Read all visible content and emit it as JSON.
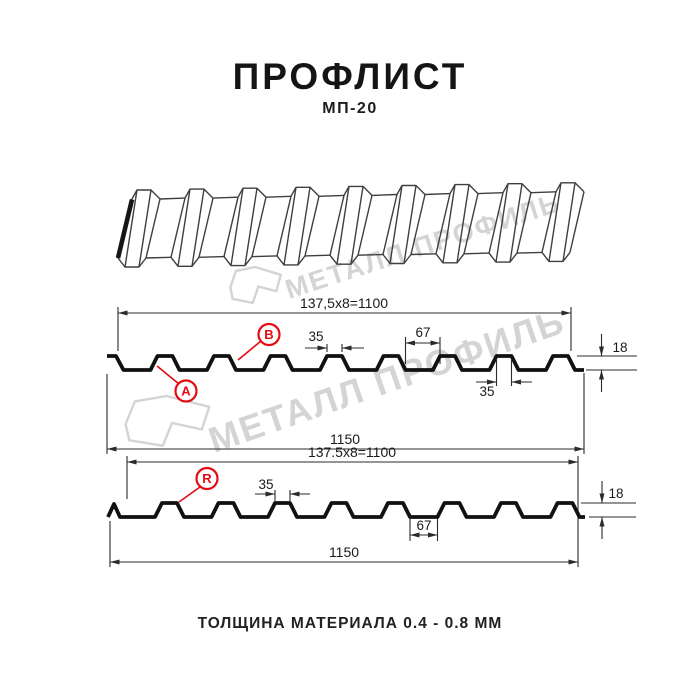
{
  "title": "ПРОФЛИСТ",
  "subtitle": "МП-20",
  "footer": "ТОЛЩИНА МАТЕРИАЛА 0.4 - 0.8 ММ",
  "watermark": {
    "text": "МЕТАЛЛ ПРОФИЛЬ",
    "color": "#d4d4d4"
  },
  "colors": {
    "red": "#e50b12",
    "line_dark": "#111111",
    "dim_line": "#2b2b2b",
    "sheet3d_line": "#3f3f3f"
  },
  "profile1": {
    "dim_width_top": "137,5x8=1100",
    "dim_rib_top": "35",
    "dim_valley": "67",
    "dim_rib_bottom": "35",
    "dim_height": "18",
    "dim_total": "1150",
    "label_a": "A",
    "label_b": "B"
  },
  "profile2": {
    "dim_width_top": "137.5x8=1100",
    "dim_rib_top": "35",
    "dim_valley": "67",
    "dim_height": "18",
    "dim_total": "1150",
    "label_r": "R"
  }
}
